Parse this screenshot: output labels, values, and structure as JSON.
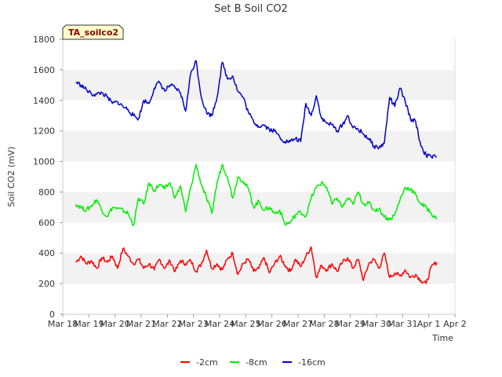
{
  "chart_data": {
    "type": "line",
    "title": "Set B Soil CO2",
    "badge": "TA_soilco2",
    "xlabel": "Time",
    "ylabel": "Soil CO2 (mV)",
    "ylim": [
      0,
      1800
    ],
    "yticks": [
      0,
      200,
      400,
      600,
      800,
      1000,
      1200,
      1400,
      1600,
      1800
    ],
    "xlim": [
      0,
      15
    ],
    "xticks": [
      {
        "v": 0,
        "label": "Mar 18"
      },
      {
        "v": 1,
        "label": "Mar 19"
      },
      {
        "v": 2,
        "label": "Mar 20"
      },
      {
        "v": 3,
        "label": "Mar 21"
      },
      {
        "v": 4,
        "label": "Mar 22"
      },
      {
        "v": 5,
        "label": "Mar 23"
      },
      {
        "v": 6,
        "label": "Mar 24"
      },
      {
        "v": 7,
        "label": "Mar 25"
      },
      {
        "v": 8,
        "label": "Mar 26"
      },
      {
        "v": 9,
        "label": "Mar 27"
      },
      {
        "v": 10,
        "label": "Mar 28"
      },
      {
        "v": 11,
        "label": "Mar 29"
      },
      {
        "v": 12,
        "label": "Mar 30"
      },
      {
        "v": 13,
        "label": "Mar 31"
      },
      {
        "v": 14,
        "label": "Apr 1"
      },
      {
        "v": 15,
        "label": "Apr 2"
      }
    ],
    "band_color": "#f2f2f2",
    "series": [
      {
        "name": "-2cm",
        "color": "#ff0000",
        "x": [
          0.5,
          0.7,
          0.9,
          1.1,
          1.3,
          1.5,
          1.7,
          1.9,
          2.1,
          2.3,
          2.5,
          2.7,
          2.9,
          3.1,
          3.3,
          3.5,
          3.7,
          3.9,
          4.1,
          4.3,
          4.5,
          4.7,
          4.9,
          5.1,
          5.3,
          5.5,
          5.7,
          5.9,
          6.1,
          6.3,
          6.5,
          6.7,
          6.9,
          7.1,
          7.3,
          7.5,
          7.7,
          7.9,
          8.1,
          8.3,
          8.5,
          8.7,
          8.9,
          9.1,
          9.3,
          9.5,
          9.7,
          9.9,
          10.1,
          10.3,
          10.5,
          10.7,
          10.9,
          11.1,
          11.3,
          11.5,
          11.7,
          11.9,
          12.1,
          12.3,
          12.5,
          12.7,
          12.9,
          13.1,
          13.3,
          13.5,
          13.7,
          13.9,
          14.1,
          14.3
        ],
        "y": [
          340,
          380,
          330,
          350,
          300,
          370,
          340,
          380,
          300,
          430,
          380,
          330,
          360,
          300,
          330,
          290,
          360,
          300,
          350,
          280,
          350,
          330,
          350,
          280,
          330,
          420,
          300,
          330,
          290,
          360,
          400,
          260,
          330,
          360,
          280,
          300,
          370,
          270,
          330,
          380,
          320,
          280,
          360,
          310,
          380,
          440,
          240,
          320,
          290,
          330,
          280,
          340,
          370,
          300,
          360,
          220,
          330,
          360,
          300,
          400,
          240,
          270,
          250,
          290,
          240,
          260,
          220,
          200,
          310,
          340
        ]
      },
      {
        "name": "-8cm",
        "color": "#00ee00",
        "x": [
          0.5,
          0.7,
          0.9,
          1.1,
          1.3,
          1.5,
          1.7,
          1.9,
          2.1,
          2.3,
          2.5,
          2.7,
          2.9,
          3.1,
          3.3,
          3.5,
          3.7,
          3.9,
          4.1,
          4.3,
          4.5,
          4.7,
          4.9,
          5.1,
          5.3,
          5.5,
          5.7,
          5.9,
          6.1,
          6.3,
          6.5,
          6.7,
          6.9,
          7.1,
          7.3,
          7.5,
          7.7,
          7.9,
          8.1,
          8.3,
          8.5,
          8.7,
          8.9,
          9.1,
          9.3,
          9.5,
          9.7,
          9.9,
          10.1,
          10.3,
          10.5,
          10.7,
          10.9,
          11.1,
          11.3,
          11.5,
          11.7,
          11.9,
          12.1,
          12.3,
          12.5,
          12.7,
          12.9,
          13.1,
          13.3,
          13.5,
          13.7,
          13.9,
          14.1,
          14.3
        ],
        "y": [
          720,
          700,
          680,
          710,
          750,
          680,
          640,
          700,
          690,
          680,
          660,
          580,
          760,
          720,
          860,
          810,
          850,
          820,
          860,
          760,
          840,
          670,
          830,
          980,
          850,
          760,
          660,
          860,
          980,
          900,
          760,
          900,
          870,
          820,
          700,
          740,
          680,
          700,
          660,
          680,
          590,
          600,
          650,
          670,
          640,
          760,
          830,
          860,
          830,
          720,
          760,
          700,
          760,
          720,
          800,
          720,
          730,
          680,
          690,
          640,
          620,
          650,
          750,
          830,
          820,
          780,
          720,
          700,
          660,
          620
        ]
      },
      {
        "name": "-16cm",
        "color": "#0000cc",
        "x": [
          0.5,
          0.7,
          0.9,
          1.1,
          1.3,
          1.5,
          1.7,
          1.9,
          2.1,
          2.3,
          2.5,
          2.7,
          2.9,
          3.1,
          3.3,
          3.5,
          3.7,
          3.9,
          4.1,
          4.3,
          4.5,
          4.7,
          4.9,
          5.1,
          5.3,
          5.5,
          5.7,
          5.9,
          6.1,
          6.3,
          6.5,
          6.7,
          6.9,
          7.1,
          7.3,
          7.5,
          7.7,
          7.9,
          8.1,
          8.3,
          8.5,
          8.7,
          8.9,
          9.1,
          9.3,
          9.5,
          9.7,
          9.9,
          10.1,
          10.3,
          10.5,
          10.7,
          10.9,
          11.1,
          11.3,
          11.5,
          11.7,
          11.9,
          12.1,
          12.3,
          12.5,
          12.7,
          12.9,
          13.1,
          13.3,
          13.5,
          13.7,
          13.9,
          14.1,
          14.3
        ],
        "y": [
          1520,
          1500,
          1470,
          1440,
          1440,
          1450,
          1420,
          1380,
          1390,
          1360,
          1340,
          1300,
          1280,
          1400,
          1380,
          1480,
          1520,
          1460,
          1500,
          1480,
          1450,
          1330,
          1580,
          1660,
          1420,
          1320,
          1300,
          1420,
          1650,
          1540,
          1560,
          1460,
          1420,
          1320,
          1260,
          1230,
          1240,
          1210,
          1200,
          1160,
          1130,
          1130,
          1150,
          1130,
          1380,
          1300,
          1430,
          1280,
          1250,
          1240,
          1200,
          1240,
          1300,
          1220,
          1210,
          1180,
          1150,
          1100,
          1090,
          1120,
          1420,
          1360,
          1480,
          1390,
          1280,
          1260,
          1100,
          1040,
          1030,
          1030
        ]
      }
    ]
  }
}
